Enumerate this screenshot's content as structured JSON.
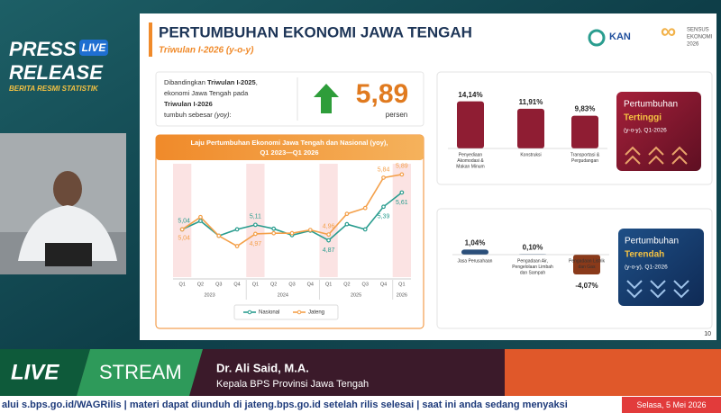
{
  "overlay": {
    "press": "PRESS",
    "release": "RELEASE",
    "badge": "LIVE",
    "tagline": "BERITA RESMI STATISTIK"
  },
  "slide": {
    "title": "PERTUMBUHAN EKONOMI JAWA TENGAH",
    "subtitle": "Triwulan I-2026 (y-o-y)",
    "logo_kan": "KAN",
    "logo_sensus": [
      "SENSUS",
      "EKONOMI",
      "2026"
    ],
    "summary": [
      [
        "Dibandingkan ",
        "Triwulan I-2025",
        ","
      ],
      [
        "ekonomi Jawa Tengah pada"
      ],
      [
        "Triwulan I-2026"
      ],
      [
        "tumbuh sebesar ",
        "(yoy)",
        ":"
      ]
    ],
    "growth": {
      "value": 5.89,
      "label": "5,89",
      "unit": "persen"
    },
    "page_number": "10"
  },
  "chart_data": {
    "type": "line",
    "title": [
      "Laju Pertumbuhan Ekonomi Jawa Tengah dan Nasional (yoy),",
      "Q1 2023—Q1 2026"
    ],
    "categories": [
      "Q1",
      "Q2",
      "Q3",
      "Q4",
      "Q1",
      "Q2",
      "Q3",
      "Q4",
      "Q1",
      "Q2",
      "Q3",
      "Q4",
      "Q1"
    ],
    "groups": [
      {
        "label": "2023",
        "span": [
          0,
          3
        ]
      },
      {
        "label": "2024",
        "span": [
          4,
          7
        ]
      },
      {
        "label": "2025",
        "span": [
          8,
          11
        ]
      },
      {
        "label": "2026",
        "span": [
          12,
          12
        ]
      }
    ],
    "ylim": [
      4.3,
      6.0
    ],
    "series": [
      {
        "name": "Nasional",
        "color": "#2a9d8f",
        "values": [
          5.04,
          5.17,
          4.94,
          5.04,
          5.11,
          5.05,
          4.95,
          5.02,
          4.87,
          5.12,
          5.04,
          5.39,
          5.61
        ],
        "value_labels": [
          "5,04",
          null,
          null,
          null,
          "5,11",
          null,
          null,
          null,
          "4,87",
          null,
          null,
          "5,39",
          "5,61"
        ]
      },
      {
        "name": "Jateng",
        "color": "#f4a04a",
        "values": [
          5.04,
          5.23,
          4.94,
          4.78,
          4.97,
          4.98,
          4.98,
          5.03,
          4.96,
          5.28,
          5.37,
          5.84,
          5.89
        ],
        "value_labels": [
          "5,04",
          null,
          null,
          null,
          "4,97",
          null,
          null,
          null,
          "4,96",
          null,
          null,
          "5,84",
          "5,89"
        ]
      }
    ],
    "legend": "bottom"
  },
  "sectors_high": {
    "heading": [
      "Pertumbuhan",
      "Tertinggi",
      "(y-o-y), Q1-2026"
    ],
    "items": [
      {
        "name": [
          "Penyediaan",
          "Akomodasi &",
          "Makan Minum"
        ],
        "value": 14.14,
        "label": "14,14%"
      },
      {
        "name": [
          "Konstruksi"
        ],
        "value": 11.91,
        "label": "11,91%"
      },
      {
        "name": [
          "Transportasi &",
          "Pergudangan"
        ],
        "value": 9.83,
        "label": "9,83%"
      }
    ]
  },
  "sectors_low": {
    "heading": [
      "Pertumbuhan",
      "Terendah",
      "(y-o-y), Q1-2026"
    ],
    "items": [
      {
        "name": [
          "Jasa Perusahaan"
        ],
        "value": 1.04,
        "label": "1,04%"
      },
      {
        "name": [
          "Pengadaan Air,",
          "Pengelolaan Limbah",
          "dan Sampah"
        ],
        "value": 0.1,
        "label": "0,10%"
      },
      {
        "name": [
          "Pengadaan Listrik",
          "dan Gas"
        ],
        "value": -4.07,
        "label": "-4,07%"
      }
    ]
  },
  "lower_third": {
    "live": "LIVE",
    "stream": "STREAM",
    "speaker": "Dr. Ali Said, M.A.",
    "role": "Kepala BPS Provinsi Jawa Tengah",
    "ticker": "alui s.bps.go.id/WAGRilis  |  materi dapat diunduh di jateng.bps.go.id setelah rilis selesai  |  saat ini anda sedang menyaksi",
    "date": "Selasa, 5 Mei 2026"
  }
}
